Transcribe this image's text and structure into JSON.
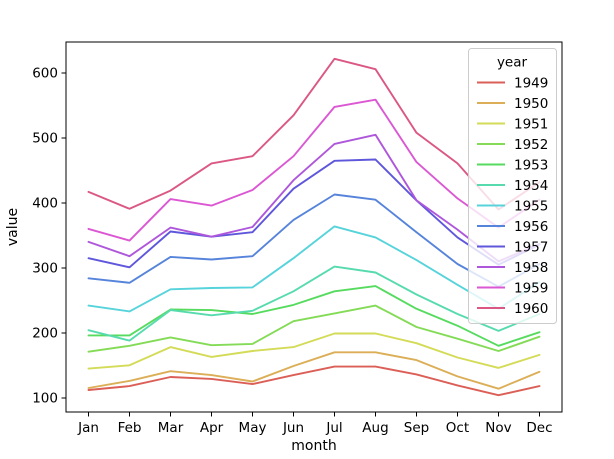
{
  "figure": {
    "background": "#ffffff",
    "frame_color": "#000000",
    "legend_border_color": "#cccccc",
    "text_color": "#000000"
  },
  "chart_data": {
    "type": "line",
    "title": "",
    "xlabel": "month",
    "ylabel": "value",
    "legend_title": "year",
    "legend_position": "upper right",
    "grid": false,
    "categories": [
      "Jan",
      "Feb",
      "Mar",
      "Apr",
      "May",
      "Jun",
      "Jul",
      "Aug",
      "Sep",
      "Oct",
      "Nov",
      "Dec"
    ],
    "y_ticks": [
      100,
      200,
      300,
      400,
      500,
      600
    ],
    "ylim": [
      78.1,
      647.9
    ],
    "xlim_units": [
      -0.55,
      11.55
    ],
    "series": [
      {
        "name": "1949",
        "color": "#db5f57",
        "values": [
          112,
          118,
          132,
          129,
          121,
          135,
          148,
          148,
          136,
          119,
          104,
          118
        ]
      },
      {
        "name": "1950",
        "color": "#dbae57",
        "values": [
          115,
          126,
          141,
          135,
          125,
          149,
          170,
          170,
          158,
          133,
          114,
          140
        ]
      },
      {
        "name": "1951",
        "color": "#d3db57",
        "values": [
          145,
          150,
          178,
          163,
          172,
          178,
          199,
          199,
          184,
          162,
          146,
          166
        ]
      },
      {
        "name": "1952",
        "color": "#84db57",
        "values": [
          171,
          180,
          193,
          181,
          183,
          218,
          230,
          242,
          209,
          191,
          172,
          194
        ]
      },
      {
        "name": "1953",
        "color": "#57db5f",
        "values": [
          196,
          196,
          236,
          235,
          229,
          243,
          264,
          272,
          237,
          211,
          180,
          201
        ]
      },
      {
        "name": "1954",
        "color": "#57dbae",
        "values": [
          204,
          188,
          235,
          227,
          234,
          264,
          302,
          293,
          259,
          229,
          203,
          229
        ]
      },
      {
        "name": "1955",
        "color": "#57d3db",
        "values": [
          242,
          233,
          267,
          269,
          270,
          315,
          364,
          347,
          312,
          274,
          237,
          278
        ]
      },
      {
        "name": "1956",
        "color": "#5784db",
        "values": [
          284,
          277,
          317,
          313,
          318,
          374,
          413,
          405,
          355,
          306,
          271,
          306
        ]
      },
      {
        "name": "1957",
        "color": "#5f57db",
        "values": [
          315,
          301,
          356,
          348,
          355,
          422,
          465,
          467,
          404,
          347,
          305,
          336
        ]
      },
      {
        "name": "1958",
        "color": "#ae57db",
        "values": [
          340,
          318,
          362,
          348,
          363,
          435,
          491,
          505,
          404,
          359,
          310,
          337
        ]
      },
      {
        "name": "1959",
        "color": "#db57d3",
        "values": [
          360,
          342,
          406,
          396,
          420,
          472,
          548,
          559,
          463,
          407,
          362,
          405
        ]
      },
      {
        "name": "1960",
        "color": "#db5784",
        "values": [
          417,
          391,
          419,
          461,
          472,
          535,
          622,
          606,
          508,
          461,
          390,
          432
        ]
      }
    ]
  }
}
